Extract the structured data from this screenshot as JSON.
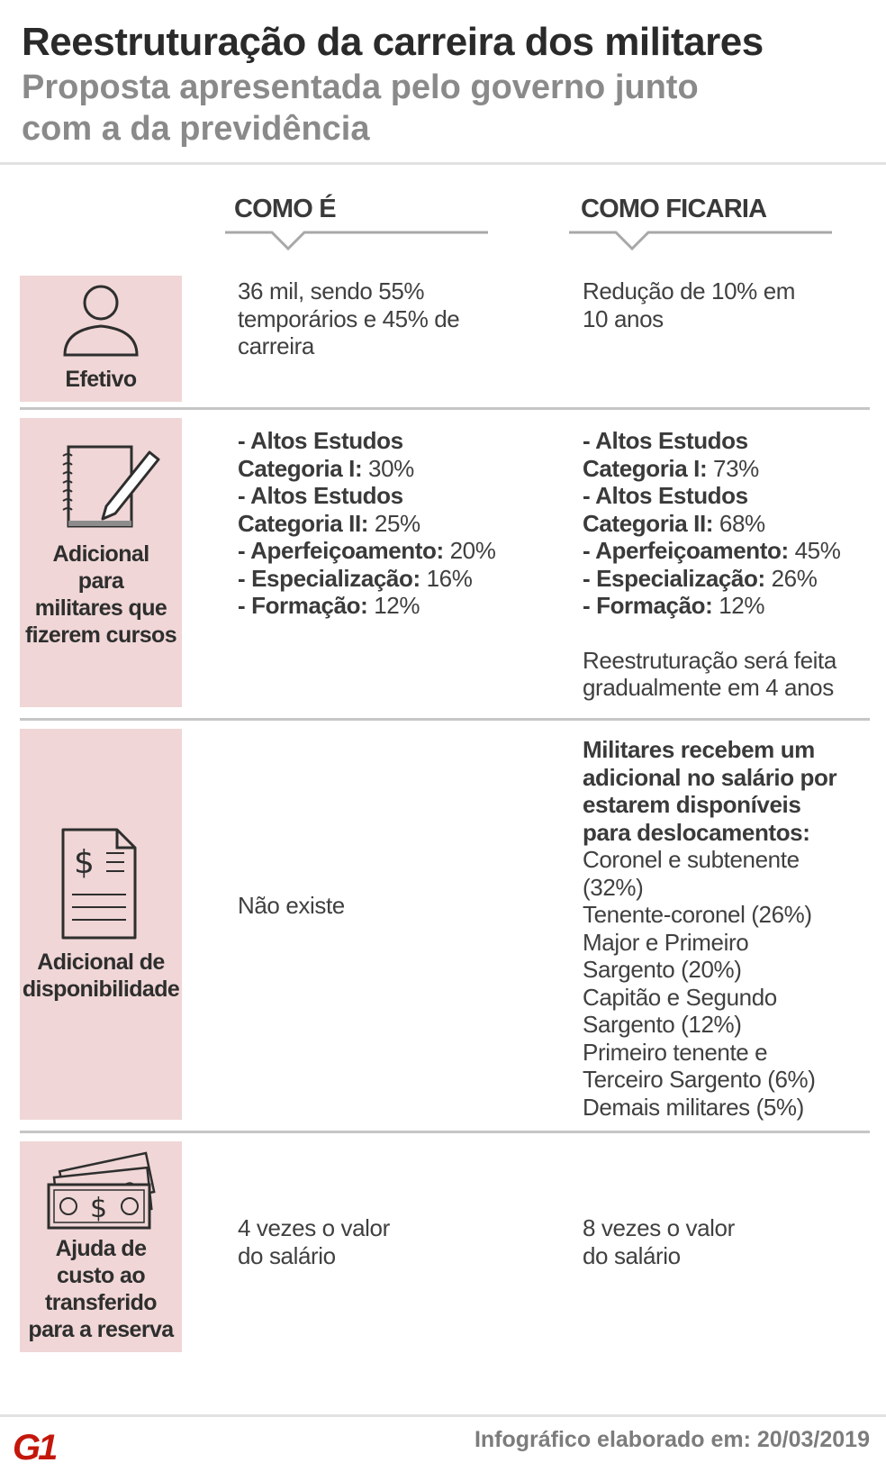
{
  "header": {
    "title": "Reestruturação da carreira dos militares",
    "subtitle_line1": "Proposta apresentada pelo governo junto",
    "subtitle_line2": "com a da previdência"
  },
  "columns": {
    "current": "COMO É",
    "proposed": "COMO FICARIA"
  },
  "rows": {
    "efetivo": {
      "label": "Efetivo",
      "icon": "person-icon",
      "current": [
        "36 mil, sendo 55%",
        "temporários e 45% de",
        "carreira"
      ],
      "proposed": [
        "Redução de 10% em",
        "10 anos"
      ]
    },
    "cursos": {
      "label": [
        "Adicional",
        "para",
        "militares que",
        "fizerem cursos"
      ],
      "icon": "notebook-pencil-icon",
      "current": [
        {
          "bold": "- Altos Estudos",
          "value": ""
        },
        {
          "bold": "Categoria I:",
          "value": " 30%"
        },
        {
          "bold": "- Altos Estudos",
          "value": ""
        },
        {
          "bold": "Categoria II:",
          "value": " 25%"
        },
        {
          "bold": "- Aperfeiçoamento:",
          "value": " 20%"
        },
        {
          "bold": "- Especialização:",
          "value": " 16%"
        },
        {
          "bold": "- Formação:",
          "value": " 12%"
        }
      ],
      "proposed": [
        {
          "bold": "- Altos Estudos",
          "value": ""
        },
        {
          "bold": "Categoria I:",
          "value": " 73%"
        },
        {
          "bold": "- Altos Estudos",
          "value": ""
        },
        {
          "bold": "Categoria II:",
          "value": " 68%"
        },
        {
          "bold": "- Aperfeiçoamento:",
          "value": " 45%"
        },
        {
          "bold": "- Especialização:",
          "value": " 26%"
        },
        {
          "bold": "- Formação:",
          "value": " 12%"
        }
      ],
      "proposed_note": [
        "Reestruturação será feita",
        "gradualmente em 4 anos"
      ]
    },
    "disponibilidade": {
      "label": [
        "Adicional de",
        "disponibilidade"
      ],
      "icon": "dollar-document-icon",
      "current": "Não existe",
      "proposed_bold": [
        "Militares recebem um",
        "adicional no salário por",
        "estarem disponíveis",
        "para deslocamentos:"
      ],
      "proposed": [
        "Coronel e subtenente",
        "(32%)",
        "Tenente-coronel (26%)",
        "Major e Primeiro",
        "Sargento (20%)",
        "Capitão e Segundo",
        "Sargento (12%)",
        "Primeiro tenente e",
        "Terceiro Sargento (6%)",
        "Demais militares (5%)"
      ]
    },
    "reserva": {
      "label": [
        "Ajuda de",
        "custo ao",
        "transferido",
        "para a reserva"
      ],
      "icon": "banknotes-icon",
      "current": [
        "4 vezes o valor",
        "do salário"
      ],
      "proposed": [
        "8 vezes o valor",
        "do salário"
      ]
    }
  },
  "footer": {
    "logo": "G1",
    "credit": "Infográfico elaborado em: 20/03/2019"
  },
  "colors": {
    "label_bg": "#f0d6d6",
    "logo_red": "#c4170c"
  }
}
